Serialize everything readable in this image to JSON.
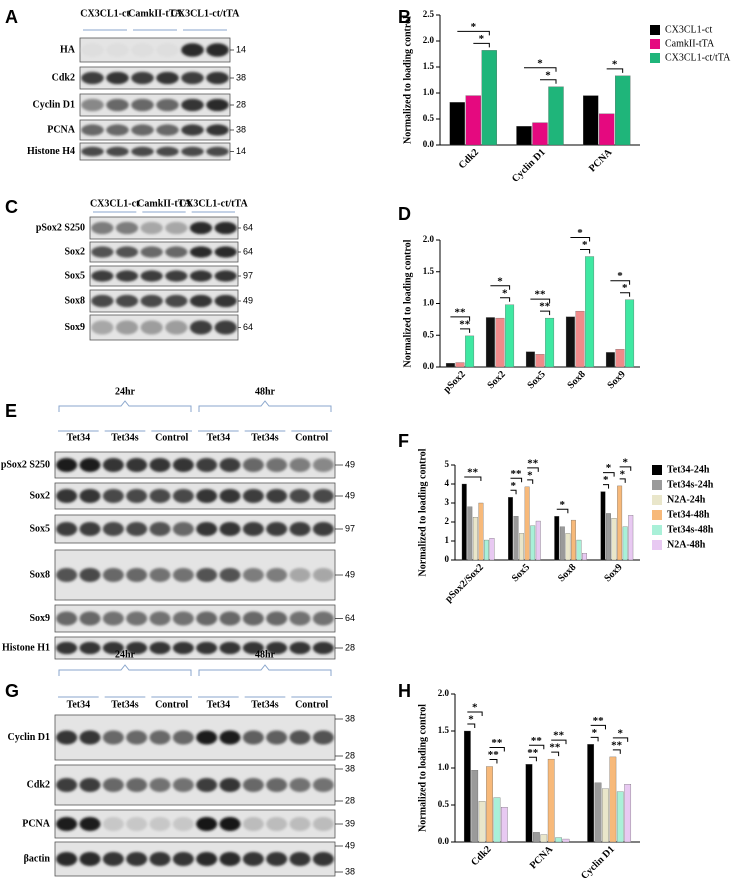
{
  "blots": [
    {
      "panel_label": "A",
      "groups": [
        "CX3CL1-ct",
        "CamkII-tTA",
        "CX3CL1-ct/tTA"
      ],
      "rows": [
        {
          "label": "HA",
          "markers": [
            "14"
          ]
        },
        {
          "label": "Cdk2",
          "markers": [
            "38"
          ]
        },
        {
          "label": "Cyclin D1",
          "markers": [
            "28"
          ]
        },
        {
          "label": "PCNA",
          "markers": [
            "38"
          ]
        },
        {
          "label": "Histone H4",
          "markers": [
            "14"
          ]
        }
      ]
    },
    {
      "panel_label": "C",
      "groups": [
        "CX3CL1-ct",
        "CamkII-tTA",
        "CX3CL1-ct/tTA"
      ],
      "rows": [
        {
          "label": "pSox2 S250",
          "markers": [
            "64"
          ]
        },
        {
          "label": "Sox2",
          "markers": [
            "64"
          ]
        },
        {
          "label": "Sox5",
          "markers": [
            "97"
          ]
        },
        {
          "label": "Sox8",
          "markers": [
            "49"
          ]
        },
        {
          "label": "Sox9",
          "markers": [
            "64"
          ]
        }
      ]
    },
    {
      "panel_label": "E",
      "time_groups": [
        "24hr",
        "48hr"
      ],
      "groups": [
        "Tet34",
        "Tet34s",
        "Control",
        "Tet34",
        "Tet34s",
        "Control"
      ],
      "rows": [
        {
          "label": "pSox2 S250",
          "markers": [
            "49"
          ]
        },
        {
          "label": "Sox2",
          "markers": [
            "49"
          ]
        },
        {
          "label": "Sox5",
          "markers": [
            "97"
          ]
        },
        {
          "label": "Sox8",
          "markers": [
            "49"
          ]
        },
        {
          "label": "Sox9",
          "markers": [
            "64"
          ]
        },
        {
          "label": "Histone H1",
          "markers": [
            "28"
          ]
        }
      ]
    },
    {
      "panel_label": "G",
      "time_groups": [
        "24hr",
        "48hr"
      ],
      "groups": [
        "Tet34",
        "Tet34s",
        "Control",
        "Tet34",
        "Tet34s",
        "Control"
      ],
      "rows": [
        {
          "label": "Cyclin D1",
          "markers": [
            "38",
            "28"
          ]
        },
        {
          "label": "Cdk2",
          "markers": [
            "38",
            "28"
          ]
        },
        {
          "label": "PCNA",
          "markers": [
            "39"
          ]
        },
        {
          "label": "βactin",
          "markers": [
            "49",
            "38"
          ]
        }
      ]
    }
  ],
  "chart_data": [
    {
      "type": "bar",
      "panel_label": "B",
      "ylabel": "Normalized to loading control",
      "categories": [
        "Cdk2",
        "Cyclin D1",
        "PCNA"
      ],
      "series": [
        {
          "name": "CX3CL1-ct",
          "color": "#000000",
          "values": [
            0.82,
            0.36,
            0.95
          ]
        },
        {
          "name": "CamkII-tTA",
          "color": "#e5097f",
          "values": [
            0.95,
            0.43,
            0.6
          ]
        },
        {
          "name": "CX3CL1-ct/tTA",
          "color": "#1fb57a",
          "values": [
            1.82,
            1.12,
            1.33
          ]
        }
      ],
      "ylim": [
        0,
        2.5
      ],
      "yticks": [
        {
          "value": 0,
          "label": "0.0"
        },
        0.5,
        {
          "value": 1,
          "label": "1.0"
        },
        1.5,
        {
          "value": 2,
          "label": "2.0"
        },
        2.5
      ],
      "legend": "right",
      "significance": [
        {
          "label": "*",
          "category": 0,
          "from": 0,
          "to": 2
        },
        {
          "label": "*",
          "category": 0,
          "from": 1,
          "to": 2
        },
        {
          "label": "*",
          "category": 1,
          "from": 0,
          "to": 2
        },
        {
          "label": "*",
          "category": 1,
          "from": 1,
          "to": 2
        },
        {
          "label": "*",
          "category": 2,
          "from": 1,
          "to": 2
        }
      ]
    },
    {
      "type": "bar",
      "panel_label": "D",
      "ylabel": "Normalized to loading control",
      "categories": [
        "pSox2",
        "Sox2",
        "Sox5",
        "Sox8",
        "Sox9"
      ],
      "series": [
        {
          "color": "#111111",
          "values": [
            0.06,
            0.78,
            0.24,
            0.79,
            0.23
          ]
        },
        {
          "color": "#f08a8a",
          "values": [
            0.07,
            0.77,
            0.2,
            0.88,
            0.28
          ]
        },
        {
          "color": "#3fe8a2",
          "values": [
            0.49,
            0.98,
            0.77,
            1.74,
            1.06
          ]
        }
      ],
      "ylim": [
        0,
        2
      ],
      "yticks": [
        {
          "value": 0,
          "label": "0.0"
        },
        0.5,
        {
          "value": 1,
          "label": "1.0"
        },
        1.5,
        {
          "value": 2,
          "label": "2.0"
        }
      ],
      "significance": [
        {
          "label": "**",
          "category": 0,
          "from": 0,
          "to": 2
        },
        {
          "label": "**",
          "category": 0,
          "from": 1,
          "to": 2
        },
        {
          "label": "*",
          "category": 1,
          "from": 0,
          "to": 2
        },
        {
          "label": "*",
          "category": 1,
          "from": 1,
          "to": 2
        },
        {
          "label": "**",
          "category": 2,
          "from": 0,
          "to": 2
        },
        {
          "label": "**",
          "category": 2,
          "from": 1,
          "to": 2
        },
        {
          "label": "*",
          "category": 3,
          "from": 0,
          "to": 2
        },
        {
          "label": "*",
          "category": 3,
          "from": 1,
          "to": 2
        },
        {
          "label": "*",
          "category": 4,
          "from": 0,
          "to": 2
        },
        {
          "label": "*",
          "category": 4,
          "from": 1,
          "to": 2
        }
      ]
    },
    {
      "type": "bar",
      "panel_label": "F",
      "ylabel": "Normalized to loading control",
      "categories": [
        "pSox2/Sox2",
        "Sox5",
        "Sox8",
        "Sox9"
      ],
      "series": [
        {
          "name": "Tet34-24h",
          "color": "#000000",
          "values": [
            4.0,
            3.3,
            2.3,
            3.6
          ]
        },
        {
          "name": "Tet34s-24h",
          "color": "#9a9a9a",
          "values": [
            2.8,
            2.3,
            1.75,
            2.45
          ]
        },
        {
          "name": "N2A-24h",
          "color": "#e9e6ca",
          "values": [
            2.25,
            1.4,
            1.4,
            2.2
          ]
        },
        {
          "name": "Tet34-48h",
          "color": "#f7b97a",
          "values": [
            3.0,
            3.85,
            2.1,
            3.9
          ]
        },
        {
          "name": "Tet34s-48h",
          "color": "#a9f0d8",
          "values": [
            1.05,
            1.8,
            1.05,
            1.75
          ]
        },
        {
          "name": "N2A-48h",
          "color": "#e8c9f2",
          "values": [
            1.15,
            2.05,
            0.35,
            2.35
          ]
        }
      ],
      "ylim": [
        0,
        5
      ],
      "yticks": [
        0,
        1,
        2,
        3,
        4,
        5
      ],
      "legend": "right",
      "significance": [
        {
          "label": "**",
          "category": 0,
          "from": 0,
          "to": 3
        },
        {
          "label": "**",
          "category": 1,
          "from": 0,
          "to": 2
        },
        {
          "label": "*",
          "category": 1,
          "from": 0,
          "to": 1
        },
        {
          "label": "**",
          "category": 1,
          "from": 3,
          "to": 5
        },
        {
          "label": "*",
          "category": 1,
          "from": 3,
          "to": 4
        },
        {
          "label": "*",
          "category": 2,
          "from": 0,
          "to": 2
        },
        {
          "label": "*",
          "category": 3,
          "from": 0,
          "to": 2
        },
        {
          "label": "*",
          "category": 3,
          "from": 0,
          "to": 1
        },
        {
          "label": "*",
          "category": 3,
          "from": 3,
          "to": 5
        },
        {
          "label": "*",
          "category": 3,
          "from": 3,
          "to": 4
        }
      ]
    },
    {
      "type": "bar",
      "panel_label": "H",
      "ylabel": "Normalized to loading control",
      "categories": [
        "Cdk2",
        "PCNA",
        "Cyclin D1"
      ],
      "series": [
        {
          "color": "#000000",
          "values": [
            1.5,
            1.05,
            1.32
          ]
        },
        {
          "color": "#9a9a9a",
          "values": [
            0.97,
            0.13,
            0.8
          ]
        },
        {
          "color": "#e9e6ca",
          "values": [
            0.55,
            0.1,
            0.72
          ]
        },
        {
          "color": "#f7b97a",
          "values": [
            1.02,
            1.12,
            1.15
          ]
        },
        {
          "color": "#a9f0d8",
          "values": [
            0.6,
            0.06,
            0.68
          ]
        },
        {
          "color": "#e8c9f2",
          "values": [
            0.47,
            0.04,
            0.78
          ]
        }
      ],
      "ylim": [
        0,
        2
      ],
      "yticks": [
        {
          "value": 0,
          "label": "0.0"
        },
        0.5,
        {
          "value": 1,
          "label": "1.0"
        },
        1.5,
        {
          "value": 2,
          "label": "2.0"
        }
      ],
      "significance": [
        {
          "label": "*",
          "category": 0,
          "from": 0,
          "to": 2
        },
        {
          "label": "*",
          "category": 0,
          "from": 0,
          "to": 1
        },
        {
          "label": "**",
          "category": 0,
          "from": 3,
          "to": 5
        },
        {
          "label": "**",
          "category": 0,
          "from": 3,
          "to": 4
        },
        {
          "label": "**",
          "category": 1,
          "from": 0,
          "to": 2
        },
        {
          "label": "**",
          "category": 1,
          "from": 0,
          "to": 1
        },
        {
          "label": "**",
          "category": 1,
          "from": 3,
          "to": 5
        },
        {
          "label": "**",
          "category": 1,
          "from": 3,
          "to": 4
        },
        {
          "label": "**",
          "category": 2,
          "from": 0,
          "to": 2
        },
        {
          "label": "*",
          "category": 2,
          "from": 0,
          "to": 1
        },
        {
          "label": "*",
          "category": 2,
          "from": 3,
          "to": 5
        },
        {
          "label": "**",
          "category": 2,
          "from": 3,
          "to": 4
        }
      ]
    }
  ]
}
